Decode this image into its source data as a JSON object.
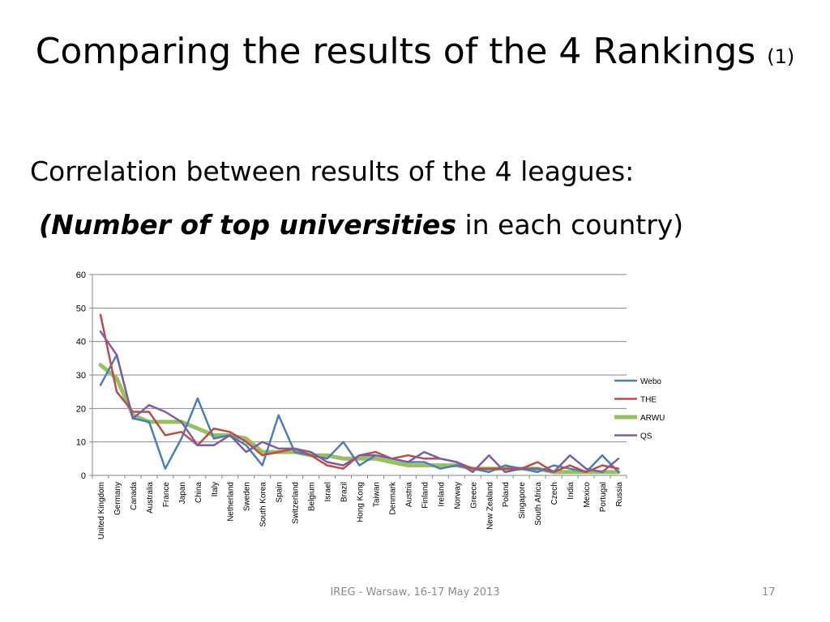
{
  "slide": {
    "title_main": "Comparing the results of the 4 Rankings",
    "title_suffix": "(1)",
    "subtitle": "Correlation between results of the 4 leagues:",
    "note_open": "(",
    "note_emphasis": "Number of top universities",
    "note_rest": " in each country)",
    "footer": "IREG - Warsaw, 16-17 May 2013",
    "page_number": "17"
  },
  "chart_data": {
    "type": "line",
    "title": "",
    "xlabel": "",
    "ylabel": "",
    "ylim": [
      0,
      60
    ],
    "yticks": [
      0,
      10,
      20,
      30,
      40,
      50,
      60
    ],
    "grid": true,
    "legend_position": "right",
    "categories": [
      "United Kingdom",
      "Germany",
      "Canada",
      "Australia",
      "France",
      "Japan",
      "China",
      "Italy",
      "Netherland",
      "Sweden",
      "South Korea",
      "Spain",
      "Switzerland",
      "Belgium",
      "Israel",
      "Brazil",
      "Hong Kong",
      "Taiwan",
      "Denmark",
      "Austria",
      "Finland",
      "Ireland",
      "Norway",
      "Greece",
      "New Zealand",
      "Poland",
      "Singapore",
      "South Africa",
      "Czech",
      "India",
      "Mexico",
      "Portugal",
      "Russia"
    ],
    "series": [
      {
        "name": "Webo",
        "color": "#4a7ebb",
        "width": 2.5,
        "values": [
          27,
          36,
          17,
          16,
          2,
          11,
          23,
          11,
          12,
          9,
          3,
          18,
          7,
          6,
          5,
          10,
          3,
          6,
          5,
          4,
          4,
          2,
          3,
          2,
          1,
          3,
          2,
          1,
          3,
          2,
          1,
          6,
          1
        ]
      },
      {
        "name": "THE",
        "color": "#be4b48",
        "width": 2.5,
        "values": [
          48,
          25,
          19,
          19,
          12,
          13,
          9,
          14,
          13,
          10,
          6,
          7,
          8,
          6,
          3,
          2,
          6,
          7,
          5,
          6,
          5,
          5,
          4,
          2,
          2,
          2,
          2,
          4,
          1,
          3,
          1,
          3,
          2
        ]
      },
      {
        "name": "ARWU",
        "color": "#98c05f",
        "width": 5,
        "values": [
          33,
          29,
          18,
          16,
          16,
          16,
          14,
          12,
          12,
          11,
          7,
          7,
          7,
          6,
          6,
          5,
          5,
          5,
          4,
          3,
          3,
          3,
          3,
          2,
          2,
          2,
          2,
          2,
          1,
          1,
          1,
          1,
          1
        ]
      },
      {
        "name": "QS",
        "color": "#7d5fa0",
        "width": 2.5,
        "values": [
          43,
          36,
          17,
          21,
          19,
          16,
          9,
          9,
          12,
          7,
          10,
          8,
          8,
          7,
          4,
          3,
          6,
          6,
          5,
          4,
          7,
          5,
          4,
          1,
          6,
          1,
          2,
          2,
          1,
          6,
          2,
          1,
          5
        ]
      }
    ]
  }
}
